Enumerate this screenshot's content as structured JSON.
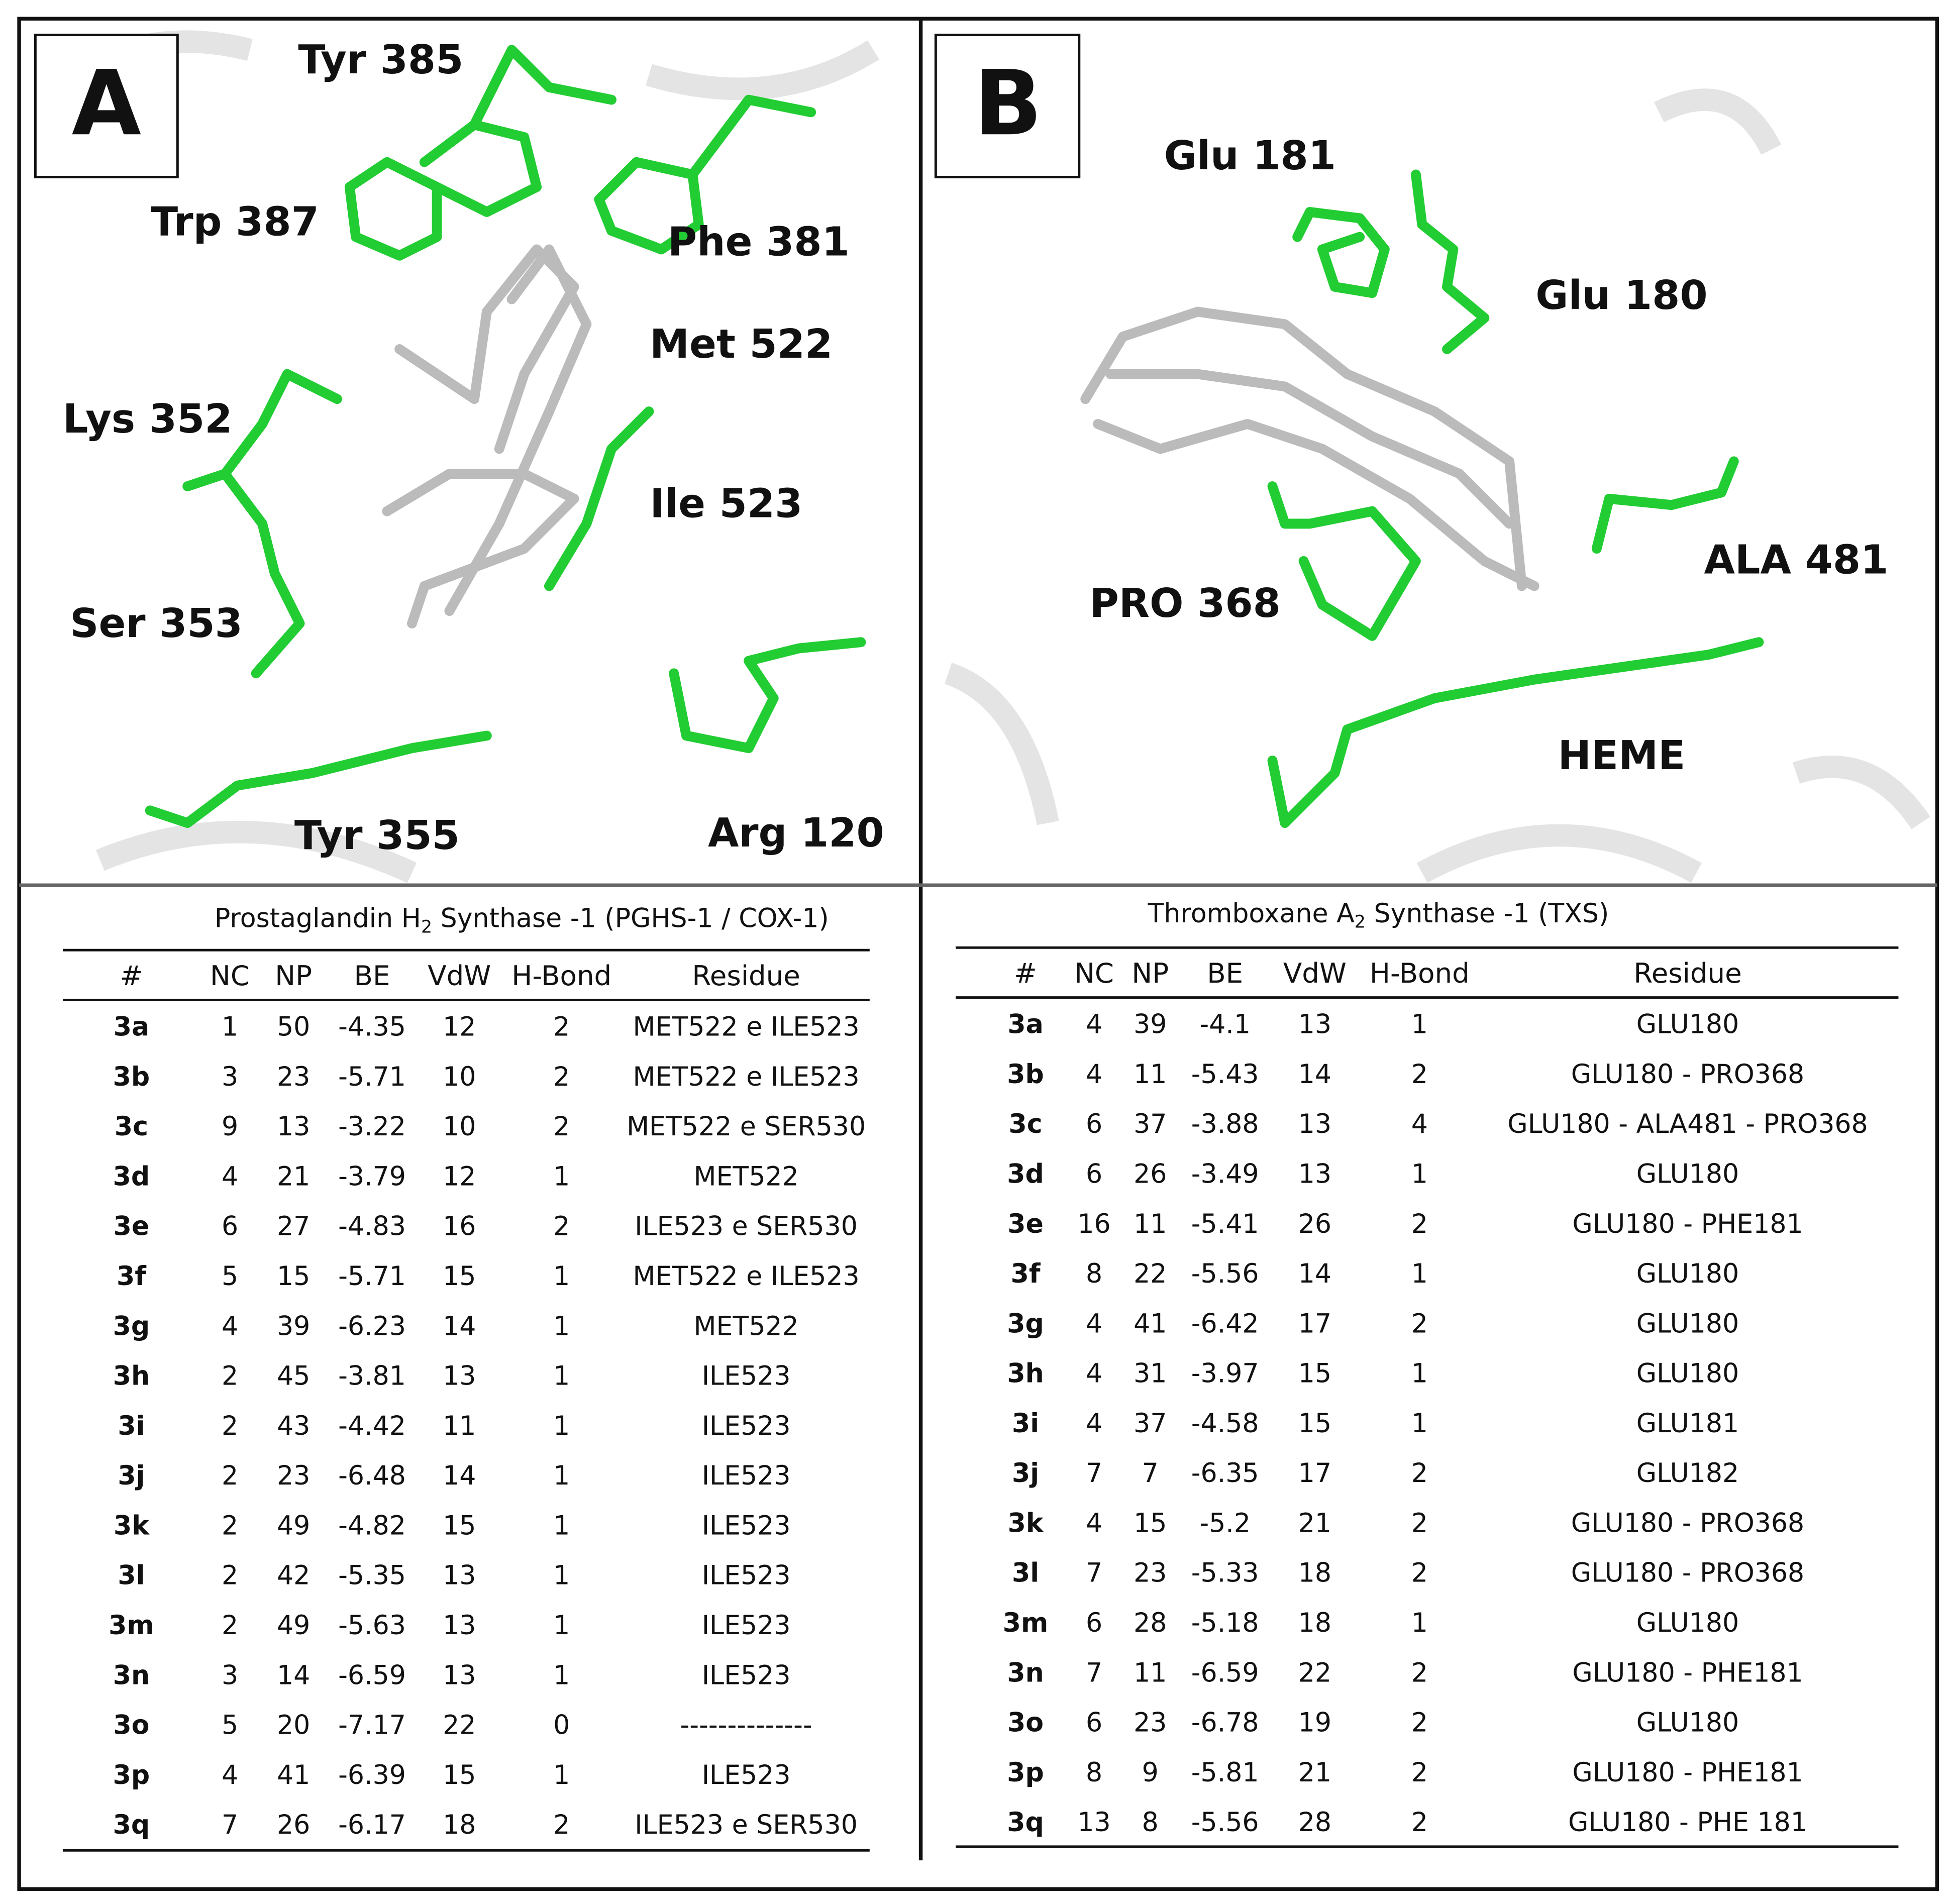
{
  "panels": [
    {
      "label": "A",
      "residues": [
        "Tyr 385",
        "Trp 387",
        "Phe 381",
        "Met 522",
        "Lys 352",
        "Ile 523",
        "Ser 353",
        "Tyr 355",
        "Arg 120"
      ],
      "table": {
        "title_pre": "Prostaglandin H",
        "title_sub": "2",
        "title_post": " Synthase -1 (PGHS-1 / COX-1)",
        "headers": [
          "#",
          "NC",
          "NP",
          "BE",
          "VdW",
          "H-Bond",
          "Residue"
        ],
        "rows": [
          [
            "3a",
            "1",
            "50",
            "-4.35",
            "12",
            "2",
            "MET522 e ILE523"
          ],
          [
            "3b",
            "3",
            "23",
            "-5.71",
            "10",
            "2",
            "MET522 e ILE523"
          ],
          [
            "3c",
            "9",
            "13",
            "-3.22",
            "10",
            "2",
            "MET522 e SER530"
          ],
          [
            "3d",
            "4",
            "21",
            "-3.79",
            "12",
            "1",
            "MET522"
          ],
          [
            "3e",
            "6",
            "27",
            "-4.83",
            "16",
            "2",
            "ILE523 e SER530"
          ],
          [
            "3f",
            "5",
            "15",
            "-5.71",
            "15",
            "1",
            "MET522 e ILE523"
          ],
          [
            "3g",
            "4",
            "39",
            "-6.23",
            "14",
            "1",
            "MET522"
          ],
          [
            "3h",
            "2",
            "45",
            "-3.81",
            "13",
            "1",
            "ILE523"
          ],
          [
            "3i",
            "2",
            "43",
            "-4.42",
            "11",
            "1",
            "ILE523"
          ],
          [
            "3j",
            "2",
            "23",
            "-6.48",
            "14",
            "1",
            "ILE523"
          ],
          [
            "3k",
            "2",
            "49",
            "-4.82",
            "15",
            "1",
            "ILE523"
          ],
          [
            "3l",
            "2",
            "42",
            "-5.35",
            "13",
            "1",
            "ILE523"
          ],
          [
            "3m",
            "2",
            "49",
            "-5.63",
            "13",
            "1",
            "ILE523"
          ],
          [
            "3n",
            "3",
            "14",
            "-6.59",
            "13",
            "1",
            "ILE523"
          ],
          [
            "3o",
            "5",
            "20",
            "-7.17",
            "22",
            "0",
            "--------------"
          ],
          [
            "3p",
            "4",
            "41",
            "-6.39",
            "15",
            "1",
            "ILE523"
          ],
          [
            "3q",
            "7",
            "26",
            "-6.17",
            "18",
            "2",
            "ILE523 e SER530"
          ]
        ]
      }
    },
    {
      "label": "B",
      "residues": [
        "Glu 181",
        "Glu 180",
        "ALA 481",
        "PRO 368",
        "HEME"
      ],
      "table": {
        "title_pre": "Thromboxane A",
        "title_sub": "2",
        "title_post": " Synthase -1 (TXS)",
        "headers": [
          "#",
          "NC",
          "NP",
          "BE",
          "VdW",
          "H-Bond",
          "Residue"
        ],
        "rows": [
          [
            "3a",
            "4",
            "39",
            "-4.1",
            "13",
            "1",
            "GLU180"
          ],
          [
            "3b",
            "4",
            "11",
            "-5.43",
            "14",
            "2",
            "GLU180 - PRO368"
          ],
          [
            "3c",
            "6",
            "37",
            "-3.88",
            "13",
            "4",
            "GLU180 - ALA481 - PRO368"
          ],
          [
            "3d",
            "6",
            "26",
            "-3.49",
            "13",
            "1",
            "GLU180"
          ],
          [
            "3e",
            "16",
            "11",
            "-5.41",
            "26",
            "2",
            "GLU180 - PHE181"
          ],
          [
            "3f",
            "8",
            "22",
            "-5.56",
            "14",
            "1",
            "GLU180"
          ],
          [
            "3g",
            "4",
            "41",
            "-6.42",
            "17",
            "2",
            "GLU180"
          ],
          [
            "3h",
            "4",
            "31",
            "-3.97",
            "15",
            "1",
            "GLU180"
          ],
          [
            "3i",
            "4",
            "37",
            "-4.58",
            "15",
            "1",
            "GLU181"
          ],
          [
            "3j",
            "7",
            "7",
            "-6.35",
            "17",
            "2",
            "GLU182"
          ],
          [
            "3k",
            "4",
            "15",
            "-5.2",
            "21",
            "2",
            "GLU180 - PRO368"
          ],
          [
            "3l",
            "7",
            "23",
            "-5.33",
            "18",
            "2",
            "GLU180 - PRO368"
          ],
          [
            "3m",
            "6",
            "28",
            "-5.18",
            "18",
            "1",
            "GLU180"
          ],
          [
            "3n",
            "7",
            "11",
            "-6.59",
            "22",
            "2",
            "GLU180 - PHE181"
          ],
          [
            "3o",
            "6",
            "23",
            "-6.78",
            "19",
            "2",
            "GLU180"
          ],
          [
            "3p",
            "8",
            "9",
            "-5.81",
            "21",
            "2",
            "GLU180 - PHE181"
          ],
          [
            "3q",
            "13",
            "8",
            "-5.56",
            "28",
            "2",
            "GLU180 - PHE 181"
          ]
        ]
      }
    }
  ]
}
